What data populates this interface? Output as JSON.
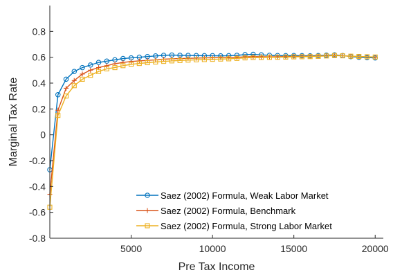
{
  "chart_data": {
    "type": "line",
    "title": "",
    "xlabel": "Pre Tax Income",
    "ylabel": "Marginal Tax Rate",
    "xlim": [
      0,
      20500
    ],
    "ylim": [
      -0.8,
      1.0
    ],
    "xticks": [
      5000,
      10000,
      15000,
      20000
    ],
    "xtick_labels": [
      "5000",
      "10000",
      "15000",
      "20000"
    ],
    "yticks": [
      -0.8,
      -0.6,
      -0.4,
      -0.2,
      0,
      0.2,
      0.4,
      0.6,
      0.8
    ],
    "ytick_labels": [
      "-0.8",
      "-0.6",
      "-0.4",
      "-0.2",
      "0",
      "0.2",
      "0.4",
      "0.6",
      "0.8"
    ],
    "grid": false,
    "legend_position": "bottom-right",
    "x": [
      0,
      500,
      1000,
      1500,
      2000,
      2500,
      3000,
      3500,
      4000,
      4500,
      5000,
      5500,
      6000,
      6500,
      7000,
      7500,
      8000,
      8500,
      9000,
      9500,
      10000,
      10500,
      11000,
      11500,
      12000,
      12500,
      13000,
      13500,
      14000,
      14500,
      15000,
      15500,
      16000,
      16500,
      17000,
      17500,
      18000,
      18500,
      19000,
      19500,
      20000
    ],
    "series": [
      {
        "name": "Saez (2002) Formula, Weak Labor Market",
        "color": "#0072BD",
        "marker": "circle",
        "values": [
          -0.27,
          0.31,
          0.43,
          0.49,
          0.52,
          0.54,
          0.56,
          0.57,
          0.58,
          0.59,
          0.595,
          0.6,
          0.605,
          0.61,
          0.615,
          0.617,
          0.615,
          0.614,
          0.613,
          0.612,
          0.612,
          0.611,
          0.612,
          0.615,
          0.62,
          0.622,
          0.618,
          0.615,
          0.613,
          0.612,
          0.613,
          0.612,
          0.611,
          0.613,
          0.616,
          0.618,
          0.613,
          0.605,
          0.6,
          0.597,
          0.595
        ]
      },
      {
        "name": "Saez (2002) Formula, Benchmark",
        "color": "#D95319",
        "marker": "plus",
        "values": [
          -0.46,
          0.19,
          0.36,
          0.42,
          0.47,
          0.5,
          0.52,
          0.535,
          0.55,
          0.56,
          0.567,
          0.572,
          0.576,
          0.58,
          0.585,
          0.588,
          0.59,
          0.592,
          0.593,
          0.595,
          0.596,
          0.597,
          0.598,
          0.6,
          0.603,
          0.605,
          0.604,
          0.603,
          0.604,
          0.605,
          0.606,
          0.607,
          0.607,
          0.609,
          0.612,
          0.615,
          0.612,
          0.608,
          0.605,
          0.603,
          0.6
        ]
      },
      {
        "name": "Saez (2002) Formula, Strong Labor Market",
        "color": "#EDB120",
        "marker": "square",
        "values": [
          -0.56,
          0.15,
          0.3,
          0.38,
          0.43,
          0.46,
          0.49,
          0.51,
          0.52,
          0.535,
          0.545,
          0.552,
          0.558,
          0.563,
          0.568,
          0.572,
          0.575,
          0.578,
          0.58,
          0.582,
          0.584,
          0.586,
          0.588,
          0.591,
          0.595,
          0.598,
          0.598,
          0.599,
          0.6,
          0.601,
          0.603,
          0.604,
          0.605,
          0.607,
          0.61,
          0.613,
          0.611,
          0.608,
          0.606,
          0.604,
          0.602
        ]
      }
    ]
  }
}
